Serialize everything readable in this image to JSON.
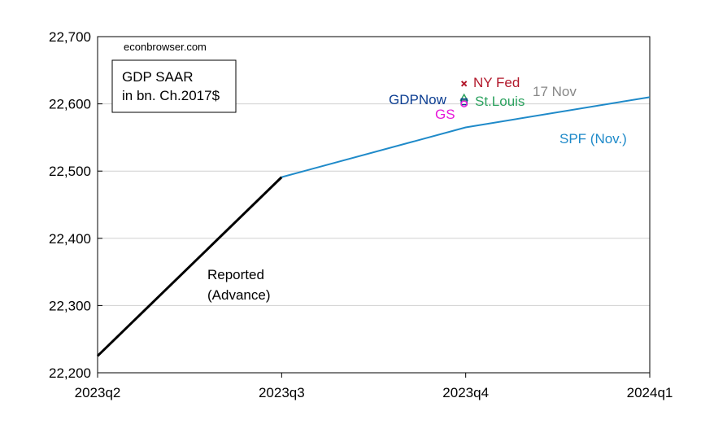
{
  "chart_data": {
    "type": "line",
    "source_label": "econbrowser.com",
    "title_box": [
      "GDP SAAR",
      "in bn. Ch.2017$"
    ],
    "categories": [
      "2023q2",
      "2023q3",
      "2023q4",
      "2024q1"
    ],
    "ylim": [
      22200,
      22700
    ],
    "yticks": [
      22200,
      22300,
      22400,
      22500,
      22600,
      22700
    ],
    "ytick_labels": [
      "22,200",
      "22,300",
      "22,400",
      "22,500",
      "22,600",
      "22,700"
    ],
    "grid": true,
    "series": [
      {
        "name": "Reported (Advance)",
        "label_lines": [
          "Reported",
          "(Advance)"
        ],
        "color": "#000000",
        "x": [
          "2023q2",
          "2023q3"
        ],
        "values": [
          22225,
          22491
        ]
      },
      {
        "name": "SPF (Nov.)",
        "color": "#1f8ac9",
        "x": [
          "2023q3",
          "2023q4",
          "2024q1"
        ],
        "values": [
          22491,
          22565,
          22610
        ]
      }
    ],
    "nowcasts": [
      {
        "name": "NY Fed",
        "x": "2023q4",
        "value": 22630,
        "color": "#b2182b",
        "marker": "x"
      },
      {
        "name": "St.Louis",
        "x": "2023q4",
        "value": 22609,
        "color": "#2ca25f",
        "marker": "triangle"
      },
      {
        "name": "GDPNow",
        "x": "2023q4",
        "value": 22603,
        "color": "#0b3d91",
        "marker": "square"
      },
      {
        "name": "GS",
        "x": "2023q4",
        "value": 22600,
        "color": "#e619d9",
        "marker": "circle"
      }
    ],
    "date_note": {
      "text": "17 Nov",
      "color": "#888888"
    }
  }
}
